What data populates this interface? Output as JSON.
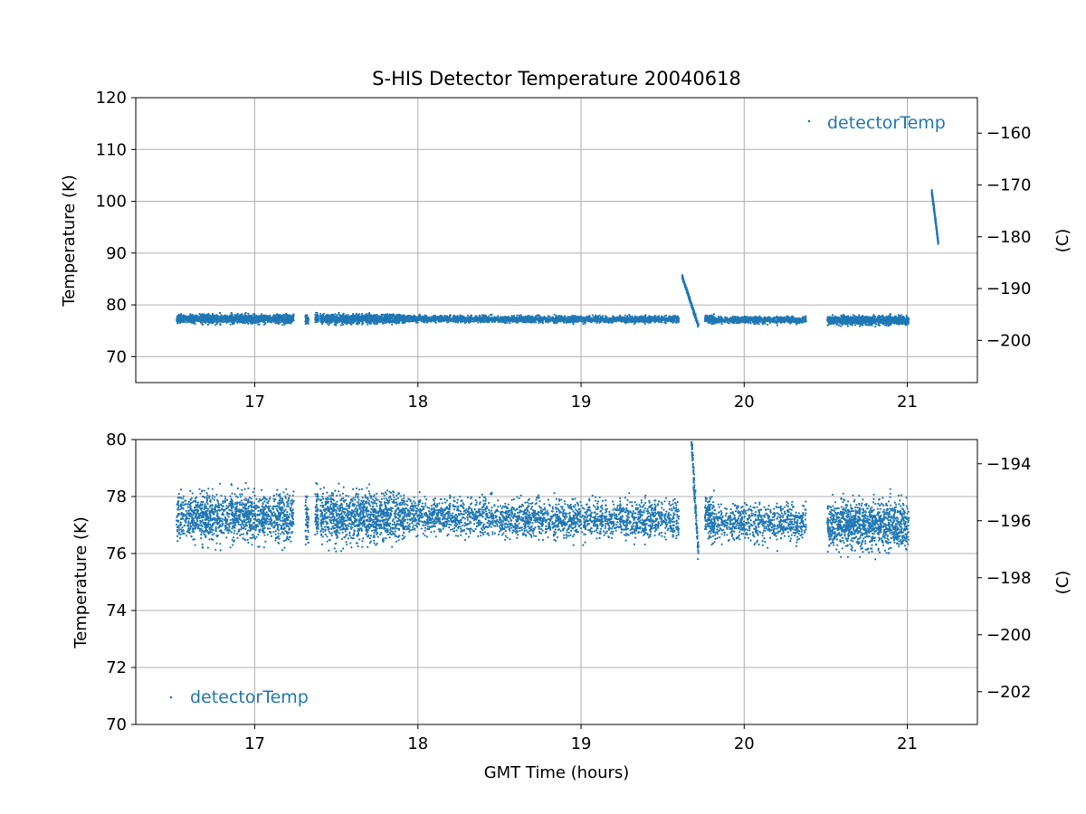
{
  "chart_data": {
    "title": "S-HIS Detector Temperature 20040618",
    "type": "scatter",
    "series_color": "#1f77b4",
    "x_ticks": [
      17,
      18,
      19,
      20,
      21
    ],
    "xlim": [
      16.27,
      21.43
    ],
    "xlabel": "GMT Time (hours)",
    "grid": true,
    "series": [
      {
        "name": "detectorTemp",
        "segments": [
          {
            "x_start": 16.52,
            "x_end": 17.24,
            "count": 1400,
            "center": 77.3,
            "spread": 0.6,
            "trend": 0
          },
          {
            "x_start": 17.31,
            "x_end": 17.33,
            "count": 50,
            "center": 77.3,
            "spread": 0.6,
            "trend": 0
          },
          {
            "x_start": 17.37,
            "x_end": 17.39,
            "count": 60,
            "center": 77.3,
            "spread": 0.6,
            "trend": 0
          },
          {
            "x_start": 17.4,
            "x_end": 17.92,
            "count": 1100,
            "center": 77.3,
            "spread": 0.6,
            "trend": 0
          },
          {
            "x_start": 17.92,
            "x_end": 18.5,
            "count": 750,
            "center": 77.3,
            "spread": 0.45,
            "trend": 0
          },
          {
            "x_start": 18.5,
            "x_end": 19.6,
            "count": 1500,
            "center": 77.2,
            "spread": 0.45,
            "trend": 0
          },
          {
            "x_start": 19.62,
            "x_end": 19.72,
            "count": 280,
            "center": 0,
            "spread": 0.3,
            "trend": -1
          },
          {
            "x_start": 19.76,
            "x_end": 19.82,
            "count": 140,
            "center": 77.3,
            "spread": 0.6,
            "trend": 0
          },
          {
            "x_start": 19.82,
            "x_end": 20.38,
            "count": 700,
            "center": 77.1,
            "spread": 0.45,
            "trend": 0
          },
          {
            "x_start": 20.51,
            "x_end": 21.01,
            "count": 1100,
            "center": 77.0,
            "spread": 0.6,
            "trend": 0
          },
          {
            "x_start": 21.15,
            "x_end": 21.19,
            "count": 220,
            "center": 0,
            "spread": 0.3,
            "trend": -2
          }
        ],
        "ramps": [
          {
            "x_start": 19.62,
            "x_end": 19.72,
            "y_start": 85.5,
            "y_end": 75.9
          },
          {
            "x_start": 21.15,
            "x_end": 21.19,
            "y_start": 102.0,
            "y_end": 92.0
          }
        ]
      }
    ],
    "panels": [
      {
        "ylabel": "Temperature (K)",
        "y2label": "(C)",
        "ylim": [
          65,
          120
        ],
        "y_ticks": [
          70,
          80,
          90,
          100,
          110,
          120
        ],
        "y2_ticks": [
          -160,
          -170,
          -180,
          -190,
          -200
        ],
        "legend": "top-right",
        "xlabel": ""
      },
      {
        "ylabel": "Temperature (K)",
        "y2label": "(C)",
        "ylim": [
          70,
          80
        ],
        "y_ticks": [
          70,
          72,
          74,
          76,
          78,
          80
        ],
        "y2_ticks": [
          -194,
          -196,
          -198,
          -200,
          -202
        ],
        "legend": "bottom-left",
        "xlabel": "GMT Time (hours)"
      }
    ]
  }
}
